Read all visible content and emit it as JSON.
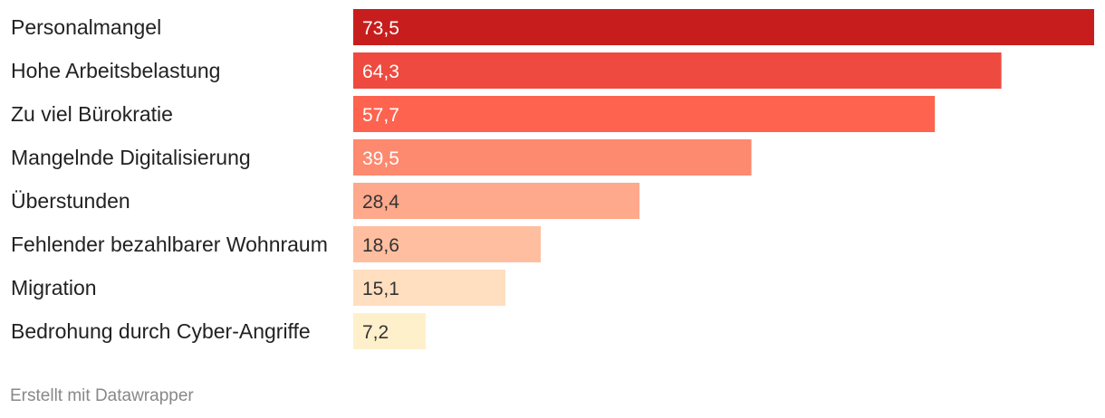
{
  "chart_data": {
    "type": "bar",
    "orientation": "horizontal",
    "categories": [
      "Personalmangel",
      "Hohe Arbeitsbelastung",
      "Zu viel Bürokratie",
      "Mangelnde Digitalisierung",
      "Überstunden",
      "Fehlender bezahlbarer Wohnraum",
      "Migration",
      "Bedrohung durch Cyber-Angriffe"
    ],
    "values": [
      73.5,
      64.3,
      57.7,
      39.5,
      28.4,
      18.6,
      15.1,
      7.2
    ],
    "value_labels": [
      "73,5",
      "64,3",
      "57,7",
      "39,5",
      "28,4",
      "18,6",
      "15,1",
      "7,2"
    ],
    "bar_colors": [
      "#c71e1d",
      "#ee4a3f",
      "#fe634f",
      "#fd896e",
      "#fea98b",
      "#ffbea0",
      "#ffdfc0",
      "#fff0cc"
    ],
    "label_colors": [
      "#ffffff",
      "#ffffff",
      "#ffffff",
      "#ffffff",
      "#333333",
      "#333333",
      "#333333",
      "#333333"
    ],
    "xlim": [
      0,
      73.5
    ],
    "title": "",
    "xlabel": "",
    "ylabel": ""
  },
  "footer": {
    "credit": "Erstellt mit Datawrapper"
  }
}
